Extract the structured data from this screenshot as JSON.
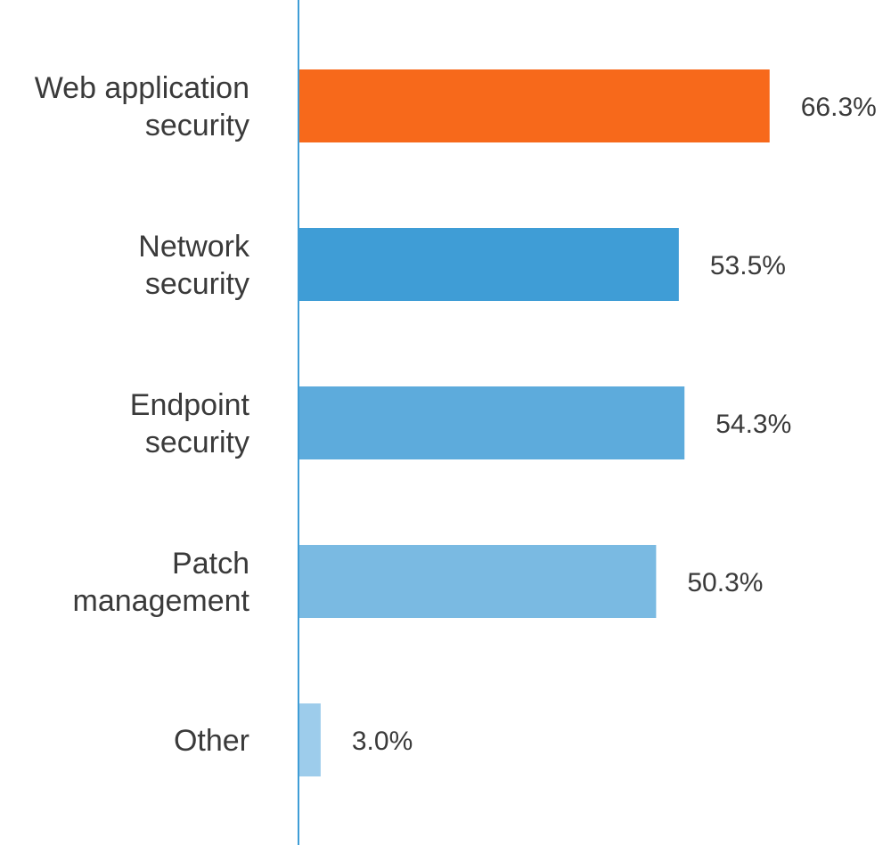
{
  "chart_data": {
    "type": "bar",
    "orientation": "horizontal",
    "categories": [
      [
        "Web application",
        "security"
      ],
      [
        "Network",
        "security"
      ],
      [
        "Endpoint",
        "security"
      ],
      [
        "Patch",
        "management"
      ],
      [
        "Other"
      ]
    ],
    "values": [
      66.3,
      53.5,
      54.3,
      50.3,
      3.0
    ],
    "value_labels": [
      "66.3%",
      "53.5%",
      "54.3%",
      "50.3%",
      "3.0%"
    ],
    "colors": [
      "#F7691B",
      "#3F9DD6",
      "#5DABDC",
      "#7ABAE2",
      "#9DCCEB"
    ],
    "axis_color": "#3F9DD6",
    "xlim": [
      0,
      100
    ],
    "grid": false,
    "legend": false
  }
}
